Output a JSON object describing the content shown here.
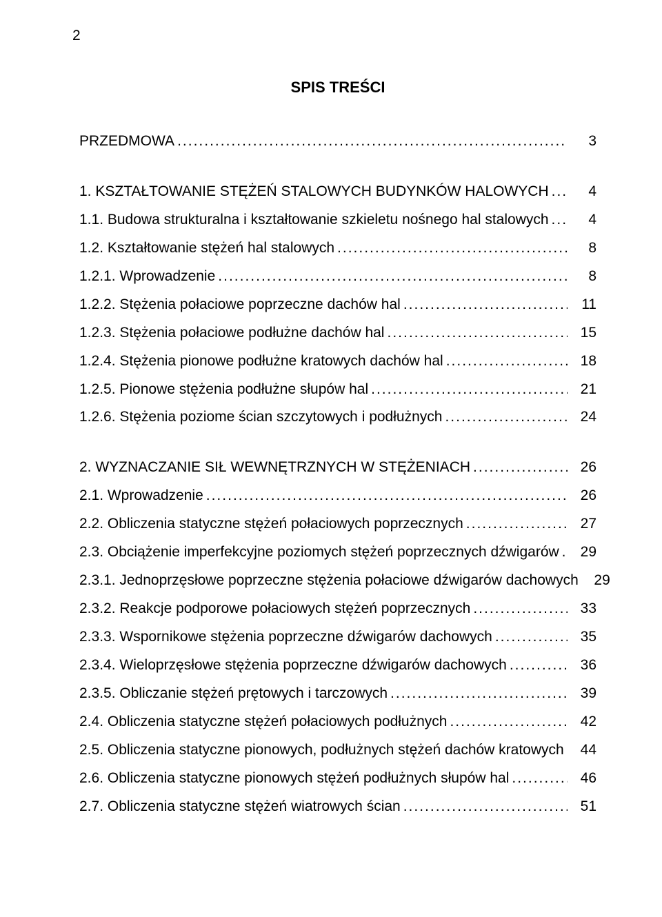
{
  "page_number": "2",
  "heading": "SPIS TREŚCI",
  "entries": [
    {
      "label": "PRZEDMOWA",
      "page": "3"
    },
    {
      "gap": true
    },
    {
      "label": "1. KSZTAŁTOWANIE STĘŻEŃ STALOWYCH BUDYNKÓW HALOWYCH",
      "page": "4"
    },
    {
      "label": "1.1. Budowa strukturalna i kształtowanie szkieletu nośnego hal stalowych",
      "page": "4"
    },
    {
      "label": "1.2. Kształtowanie stężeń hal stalowych",
      "page": "8"
    },
    {
      "label": "1.2.1. Wprowadzenie",
      "page": "8"
    },
    {
      "label": "1.2.2. Stężenia połaciowe poprzeczne dachów hal",
      "page": "11"
    },
    {
      "label": "1.2.3. Stężenia połaciowe podłużne dachów hal",
      "page": "15"
    },
    {
      "label": "1.2.4. Stężenia pionowe podłużne kratowych dachów hal",
      "page": "18"
    },
    {
      "label": "1.2.5. Pionowe stężenia podłużne słupów hal",
      "page": "21"
    },
    {
      "label": "1.2.6. Stężenia poziome ścian szczytowych i podłużnych",
      "page": "24"
    },
    {
      "gap": true
    },
    {
      "label": "2. WYZNACZANIE SIŁ WEWNĘTRZNYCH W STĘŻENIACH",
      "page": "26"
    },
    {
      "label": "2.1. Wprowadzenie",
      "page": "26"
    },
    {
      "label": "2.2. Obliczenia statyczne stężeń połaciowych poprzecznych",
      "page": "27"
    },
    {
      "label": "2.3. Obciążenie imperfekcyjne poziomych stężeń poprzecznych dźwigarów",
      "page": "29"
    },
    {
      "label": "2.3.1. Jednoprzęsłowe poprzeczne stężenia połaciowe dźwigarów dachowych",
      "page": "29"
    },
    {
      "label": "2.3.2. Reakcje podporowe połaciowych stężeń poprzecznych",
      "page": "33"
    },
    {
      "label": "2.3.3. Wspornikowe stężenia poprzeczne dźwigarów dachowych",
      "page": "35"
    },
    {
      "label": "2.3.4. Wieloprzęsłowe stężenia poprzeczne dźwigarów dachowych",
      "page": "36"
    },
    {
      "label": "2.3.5. Obliczanie stężeń prętowych i tarczowych",
      "page": "39"
    },
    {
      "label": "2.4. Obliczenia statyczne stężeń połaciowych podłużnych",
      "page": "42"
    },
    {
      "label": "2.5. Obliczenia statyczne pionowych, podłużnych stężeń dachów kratowych",
      "page": "44"
    },
    {
      "label": "2.6. Obliczenia statyczne pionowych stężeń podłużnych słupów hal",
      "page": "46"
    },
    {
      "label": "2.7. Obliczenia statyczne stężeń wiatrowych ścian",
      "page": "51"
    }
  ]
}
